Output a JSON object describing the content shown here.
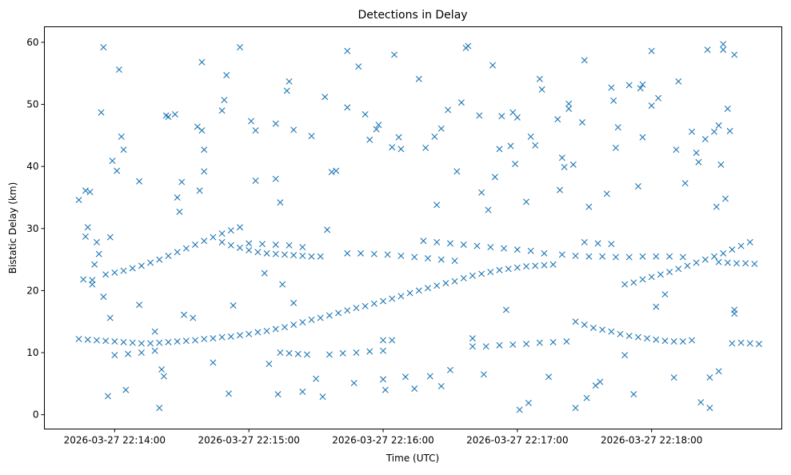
{
  "chart_data": {
    "type": "scatter",
    "title": "Detections in Delay",
    "xlabel": "Time (UTC)",
    "ylabel": "Bistatic Delay (km)",
    "x_unit": "seconds after 2026-03-27 22:14:00",
    "xlim": [
      -31.4,
      298.2
    ],
    "ylim": [
      -2.3,
      62.5
    ],
    "grid": false,
    "marker": "x",
    "color": "#1f77b4",
    "xticks": [
      {
        "value": 0,
        "label": "2026-03-27 22:14:00"
      },
      {
        "value": 60,
        "label": "2026-03-27 22:15:00"
      },
      {
        "value": 120,
        "label": "2026-03-27 22:16:00"
      },
      {
        "value": 180,
        "label": "2026-03-27 22:17:00"
      },
      {
        "value": 240,
        "label": "2026-03-27 22:18:00"
      }
    ],
    "yticks": [
      {
        "value": 0,
        "label": "0"
      },
      {
        "value": 10,
        "label": "10"
      },
      {
        "value": 20,
        "label": "20"
      },
      {
        "value": 30,
        "label": "30"
      },
      {
        "value": 40,
        "label": "40"
      },
      {
        "value": 50,
        "label": "50"
      },
      {
        "value": 60,
        "label": "60"
      }
    ],
    "points": [
      [
        -16,
        12.2
      ],
      [
        -12,
        12.1
      ],
      [
        -8,
        12.0
      ],
      [
        -4,
        11.9
      ],
      [
        0,
        11.8
      ],
      [
        4,
        11.7
      ],
      [
        8,
        11.6
      ],
      [
        12,
        11.5
      ],
      [
        16,
        11.5
      ],
      [
        20,
        11.6
      ],
      [
        24,
        11.7
      ],
      [
        28,
        11.8
      ],
      [
        32,
        11.9
      ],
      [
        36,
        12.0
      ],
      [
        40,
        12.2
      ],
      [
        44,
        12.3
      ],
      [
        48,
        12.5
      ],
      [
        52,
        12.6
      ],
      [
        56,
        12.8
      ],
      [
        60,
        13.0
      ],
      [
        64,
        13.3
      ],
      [
        68,
        13.5
      ],
      [
        72,
        13.8
      ],
      [
        76,
        14.1
      ],
      [
        80,
        14.5
      ],
      [
        84,
        14.9
      ],
      [
        88,
        15.3
      ],
      [
        92,
        15.6
      ],
      [
        96,
        16.0
      ],
      [
        100,
        16.4
      ],
      [
        104,
        16.8
      ],
      [
        108,
        17.2
      ],
      [
        112,
        17.5
      ],
      [
        116,
        17.9
      ],
      [
        120,
        18.3
      ],
      [
        124,
        18.7
      ],
      [
        128,
        19.1
      ],
      [
        132,
        19.6
      ],
      [
        136,
        20.0
      ],
      [
        140,
        20.4
      ],
      [
        144,
        20.8
      ],
      [
        148,
        21.2
      ],
      [
        152,
        21.5
      ],
      [
        156,
        22.0
      ],
      [
        160,
        22.4
      ],
      [
        164,
        22.7
      ],
      [
        168,
        23.0
      ],
      [
        172,
        23.3
      ],
      [
        176,
        23.5
      ],
      [
        180,
        23.7
      ],
      [
        184,
        23.9
      ],
      [
        188,
        24.0
      ],
      [
        192,
        24.1
      ],
      [
        196,
        24.2
      ],
      [
        -4,
        22.6
      ],
      [
        0,
        22.9
      ],
      [
        4,
        23.2
      ],
      [
        8,
        23.6
      ],
      [
        12,
        24.0
      ],
      [
        16,
        24.5
      ],
      [
        20,
        25.0
      ],
      [
        24,
        25.6
      ],
      [
        28,
        26.2
      ],
      [
        32,
        26.8
      ],
      [
        36,
        27.4
      ],
      [
        40,
        28.0
      ],
      [
        44,
        28.6
      ],
      [
        48,
        29.2
      ],
      [
        52,
        29.7
      ],
      [
        56,
        30.2
      ],
      [
        48,
        27.8
      ],
      [
        52,
        27.3
      ],
      [
        56,
        26.9
      ],
      [
        60,
        26.5
      ],
      [
        64,
        26.2
      ],
      [
        68,
        26.0
      ],
      [
        72,
        25.9
      ],
      [
        76,
        25.8
      ],
      [
        80,
        25.7
      ],
      [
        84,
        25.6
      ],
      [
        88,
        25.5
      ],
      [
        92,
        25.5
      ],
      [
        60,
        27.6
      ],
      [
        66,
        27.5
      ],
      [
        72,
        27.4
      ],
      [
        78,
        27.3
      ],
      [
        84,
        27.0
      ],
      [
        104,
        26.0
      ],
      [
        110,
        26.0
      ],
      [
        116,
        25.9
      ],
      [
        122,
        25.8
      ],
      [
        128,
        25.6
      ],
      [
        134,
        25.4
      ],
      [
        140,
        25.2
      ],
      [
        146,
        25.0
      ],
      [
        152,
        24.8
      ],
      [
        138,
        28.0
      ],
      [
        144,
        27.8
      ],
      [
        150,
        27.6
      ],
      [
        156,
        27.4
      ],
      [
        162,
        27.2
      ],
      [
        168,
        27.0
      ],
      [
        174,
        26.8
      ],
      [
        180,
        26.6
      ],
      [
        186,
        26.4
      ],
      [
        192,
        26.0
      ],
      [
        200,
        25.8
      ],
      [
        206,
        25.6
      ],
      [
        212,
        25.5
      ],
      [
        218,
        25.5
      ],
      [
        224,
        25.4
      ],
      [
        230,
        25.4
      ],
      [
        236,
        25.5
      ],
      [
        242,
        25.5
      ],
      [
        248,
        25.5
      ],
      [
        254,
        25.4
      ],
      [
        228,
        21.0
      ],
      [
        232,
        21.3
      ],
      [
        236,
        21.8
      ],
      [
        240,
        22.2
      ],
      [
        244,
        22.6
      ],
      [
        248,
        23.0
      ],
      [
        252,
        23.5
      ],
      [
        256,
        24.0
      ],
      [
        260,
        24.5
      ],
      [
        264,
        25.0
      ],
      [
        268,
        25.5
      ],
      [
        272,
        26.0
      ],
      [
        276,
        26.6
      ],
      [
        280,
        27.2
      ],
      [
        284,
        27.8
      ],
      [
        270,
        24.6
      ],
      [
        274,
        24.5
      ],
      [
        278,
        24.4
      ],
      [
        282,
        24.4
      ],
      [
        286,
        24.3
      ],
      [
        210,
        27.8
      ],
      [
        216,
        27.6
      ],
      [
        222,
        27.5
      ],
      [
        160,
        11.0
      ],
      [
        166,
        11.0
      ],
      [
        172,
        11.2
      ],
      [
        178,
        11.3
      ],
      [
        184,
        11.4
      ],
      [
        190,
        11.6
      ],
      [
        196,
        11.7
      ],
      [
        202,
        11.8
      ],
      [
        206,
        15.0
      ],
      [
        210,
        14.5
      ],
      [
        214,
        14.0
      ],
      [
        218,
        13.7
      ],
      [
        222,
        13.4
      ],
      [
        226,
        13.0
      ],
      [
        230,
        12.7
      ],
      [
        234,
        12.5
      ],
      [
        238,
        12.3
      ],
      [
        242,
        12.1
      ],
      [
        246,
        11.9
      ],
      [
        250,
        11.8
      ],
      [
        254,
        11.8
      ],
      [
        258,
        12.0
      ],
      [
        276,
        11.5
      ],
      [
        280,
        11.6
      ],
      [
        284,
        11.5
      ],
      [
        288,
        11.4
      ],
      [
        74,
        10.0
      ],
      [
        78,
        9.9
      ],
      [
        82,
        9.8
      ],
      [
        86,
        9.7
      ],
      [
        96,
        9.7
      ],
      [
        102,
        9.9
      ],
      [
        108,
        10.0
      ],
      [
        114,
        10.2
      ],
      [
        120,
        10.3
      ],
      [
        120,
        12.0
      ],
      [
        124,
        12.0
      ],
      [
        0,
        9.6
      ],
      [
        6,
        9.8
      ],
      [
        12,
        10.0
      ],
      [
        18,
        10.3
      ],
      [
        -16,
        34.6
      ],
      [
        -14,
        21.8
      ],
      [
        -13,
        36.1
      ],
      [
        -12,
        30.2
      ],
      [
        -13,
        28.7
      ],
      [
        -11,
        35.9
      ],
      [
        -10,
        21.7
      ],
      [
        -10,
        21.0
      ],
      [
        -9,
        24.2
      ],
      [
        -8,
        27.8
      ],
      [
        -7,
        25.9
      ],
      [
        -6,
        48.7
      ],
      [
        -5,
        19.0
      ],
      [
        -5,
        59.2
      ],
      [
        -3,
        3.0
      ],
      [
        -2,
        15.6
      ],
      [
        -2,
        28.6
      ],
      [
        -1,
        40.9
      ],
      [
        1,
        39.3
      ],
      [
        2,
        55.6
      ],
      [
        3,
        44.8
      ],
      [
        4,
        42.7
      ],
      [
        5,
        4.0
      ],
      [
        11,
        37.6
      ],
      [
        11,
        17.7
      ],
      [
        18,
        13.4
      ],
      [
        20,
        1.1
      ],
      [
        21,
        7.3
      ],
      [
        22,
        6.2
      ],
      [
        23,
        48.2
      ],
      [
        24,
        48.0
      ],
      [
        27,
        48.4
      ],
      [
        28,
        35.0
      ],
      [
        29,
        32.7
      ],
      [
        30,
        37.5
      ],
      [
        31,
        16.1
      ],
      [
        35,
        15.6
      ],
      [
        37,
        46.4
      ],
      [
        38,
        36.1
      ],
      [
        39,
        56.8
      ],
      [
        39,
        45.8
      ],
      [
        40,
        42.7
      ],
      [
        40,
        39.2
      ],
      [
        44,
        8.4
      ],
      [
        48,
        49.0
      ],
      [
        49,
        50.7
      ],
      [
        50,
        54.7
      ],
      [
        51,
        3.4
      ],
      [
        53,
        17.6
      ],
      [
        56,
        59.2
      ],
      [
        61,
        47.3
      ],
      [
        63,
        45.8
      ],
      [
        63,
        37.7
      ],
      [
        67,
        22.8
      ],
      [
        69,
        8.2
      ],
      [
        72,
        38.0
      ],
      [
        72,
        46.9
      ],
      [
        73,
        3.3
      ],
      [
        74,
        34.2
      ],
      [
        75,
        21.0
      ],
      [
        77,
        52.2
      ],
      [
        78,
        53.7
      ],
      [
        80,
        45.9
      ],
      [
        80,
        18.0
      ],
      [
        84,
        3.7
      ],
      [
        88,
        44.9
      ],
      [
        90,
        5.8
      ],
      [
        93,
        2.9
      ],
      [
        94,
        51.2
      ],
      [
        95,
        29.8
      ],
      [
        97,
        39.1
      ],
      [
        99,
        39.3
      ],
      [
        104,
        49.5
      ],
      [
        104,
        58.6
      ],
      [
        107,
        5.1
      ],
      [
        109,
        56.1
      ],
      [
        112,
        48.4
      ],
      [
        114,
        44.3
      ],
      [
        117,
        46.0
      ],
      [
        118,
        46.7
      ],
      [
        120,
        5.7
      ],
      [
        121,
        4.0
      ],
      [
        124,
        43.1
      ],
      [
        125,
        58.0
      ],
      [
        127,
        44.7
      ],
      [
        128,
        42.8
      ],
      [
        130,
        6.1
      ],
      [
        134,
        4.2
      ],
      [
        136,
        54.1
      ],
      [
        139,
        43.0
      ],
      [
        141,
        6.2
      ],
      [
        143,
        44.8
      ],
      [
        144,
        33.8
      ],
      [
        146,
        46.1
      ],
      [
        146,
        4.6
      ],
      [
        149,
        49.1
      ],
      [
        150,
        7.2
      ],
      [
        153,
        39.2
      ],
      [
        155,
        50.3
      ],
      [
        157,
        59.1
      ],
      [
        158,
        59.4
      ],
      [
        160,
        12.3
      ],
      [
        163,
        48.2
      ],
      [
        164,
        35.8
      ],
      [
        165,
        6.5
      ],
      [
        167,
        33.0
      ],
      [
        169,
        56.3
      ],
      [
        170,
        38.3
      ],
      [
        172,
        42.8
      ],
      [
        173,
        48.1
      ],
      [
        175,
        16.9
      ],
      [
        177,
        43.3
      ],
      [
        178,
        48.7
      ],
      [
        179,
        40.4
      ],
      [
        180,
        47.9
      ],
      [
        181,
        0.8
      ],
      [
        184,
        34.3
      ],
      [
        185,
        1.9
      ],
      [
        186,
        44.8
      ],
      [
        188,
        43.4
      ],
      [
        190,
        54.1
      ],
      [
        191,
        52.4
      ],
      [
        194,
        6.1
      ],
      [
        198,
        47.6
      ],
      [
        199,
        36.2
      ],
      [
        200,
        41.4
      ],
      [
        201,
        39.9
      ],
      [
        203,
        49.3
      ],
      [
        203,
        50.1
      ],
      [
        205,
        40.3
      ],
      [
        206,
        1.1
      ],
      [
        209,
        47.1
      ],
      [
        210,
        57.1
      ],
      [
        211,
        2.7
      ],
      [
        212,
        33.5
      ],
      [
        215,
        4.7
      ],
      [
        217,
        5.3
      ],
      [
        220,
        35.6
      ],
      [
        222,
        52.7
      ],
      [
        223,
        50.6
      ],
      [
        224,
        43.0
      ],
      [
        225,
        46.3
      ],
      [
        228,
        9.6
      ],
      [
        230,
        53.1
      ],
      [
        232,
        3.3
      ],
      [
        234,
        36.8
      ],
      [
        235,
        52.6
      ],
      [
        236,
        53.2
      ],
      [
        236,
        44.7
      ],
      [
        240,
        49.8
      ],
      [
        240,
        58.6
      ],
      [
        242,
        17.4
      ],
      [
        243,
        51.0
      ],
      [
        246,
        19.4
      ],
      [
        250,
        6.0
      ],
      [
        251,
        42.7
      ],
      [
        252,
        53.7
      ],
      [
        255,
        37.3
      ],
      [
        258,
        45.6
      ],
      [
        260,
        42.2
      ],
      [
        261,
        40.7
      ],
      [
        262,
        2.0
      ],
      [
        264,
        44.4
      ],
      [
        266,
        1.1
      ],
      [
        268,
        45.6
      ],
      [
        269,
        33.5
      ],
      [
        270,
        46.6
      ],
      [
        271,
        40.3
      ],
      [
        272,
        59.7
      ],
      [
        272,
        58.8
      ],
      [
        273,
        34.8
      ],
      [
        274,
        49.3
      ],
      [
        275,
        45.7
      ],
      [
        277,
        58.0
      ],
      [
        277,
        16.9
      ],
      [
        277,
        16.3
      ],
      [
        266,
        6.0
      ],
      [
        270,
        7.0
      ],
      [
        265,
        58.8
      ]
    ]
  }
}
